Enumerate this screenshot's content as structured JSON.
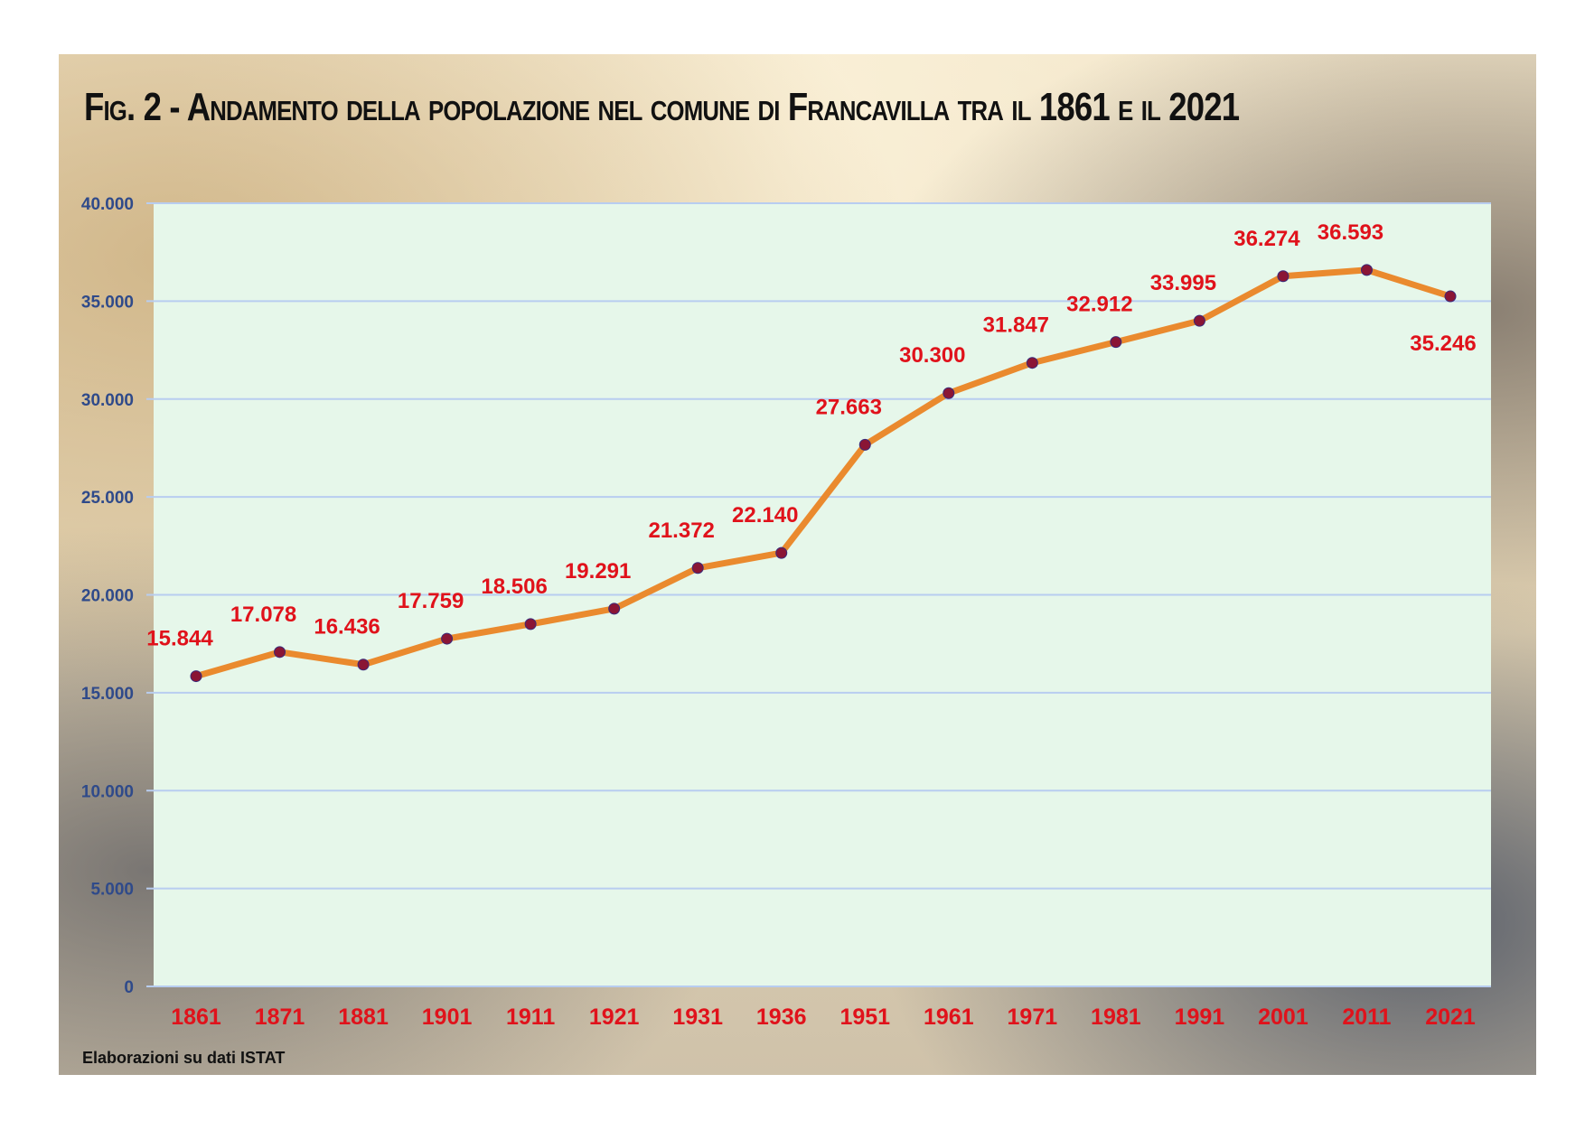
{
  "title": "Fig. 2 - Andamento della popolazione nel comune di Francavilla tra il 1861 e il 2021",
  "source_note": "Elaborazioni su dati ISTAT",
  "colors": {
    "plot_background": "#e6f7ea",
    "gridline": "#b8cdf0",
    "line": "#ea8a2e",
    "marker": "#8a1535",
    "data_label": "#e0121b",
    "x_tick_label": "#e0121b",
    "y_tick_label": "#2f4a8a"
  },
  "chart_data": {
    "type": "line",
    "title": "Fig. 2 - Andamento della popolazione nel comune di Francavilla tra il 1861 e il 2021",
    "xlabel": "",
    "ylabel": "",
    "categories": [
      "1861",
      "1871",
      "1881",
      "1901",
      "1911",
      "1921",
      "1931",
      "1936",
      "1951",
      "1961",
      "1971",
      "1981",
      "1991",
      "2001",
      "2011",
      "2021"
    ],
    "series": [
      {
        "values": [
          15844,
          17078,
          16436,
          17759,
          18506,
          19291,
          21372,
          22140,
          27663,
          30300,
          31847,
          32912,
          33995,
          36274,
          36593,
          35246
        ],
        "labels": [
          "15.844",
          "17.078",
          "16.436",
          "17.759",
          "18.506",
          "19.291",
          "21.372",
          "22.140",
          "27.663",
          "30.300",
          "31.847",
          "32.912",
          "33.995",
          "36.274",
          "36.593",
          "35.246"
        ]
      }
    ],
    "ylim": [
      0,
      40000
    ],
    "yticks": [
      0,
      5000,
      10000,
      15000,
      20000,
      25000,
      30000,
      35000,
      40000
    ],
    "ytick_labels": [
      "0",
      "5.000",
      "10.000",
      "15.000",
      "20.000",
      "25.000",
      "30.000",
      "35.000",
      "40.000"
    ],
    "grid": true,
    "legend": "none"
  }
}
